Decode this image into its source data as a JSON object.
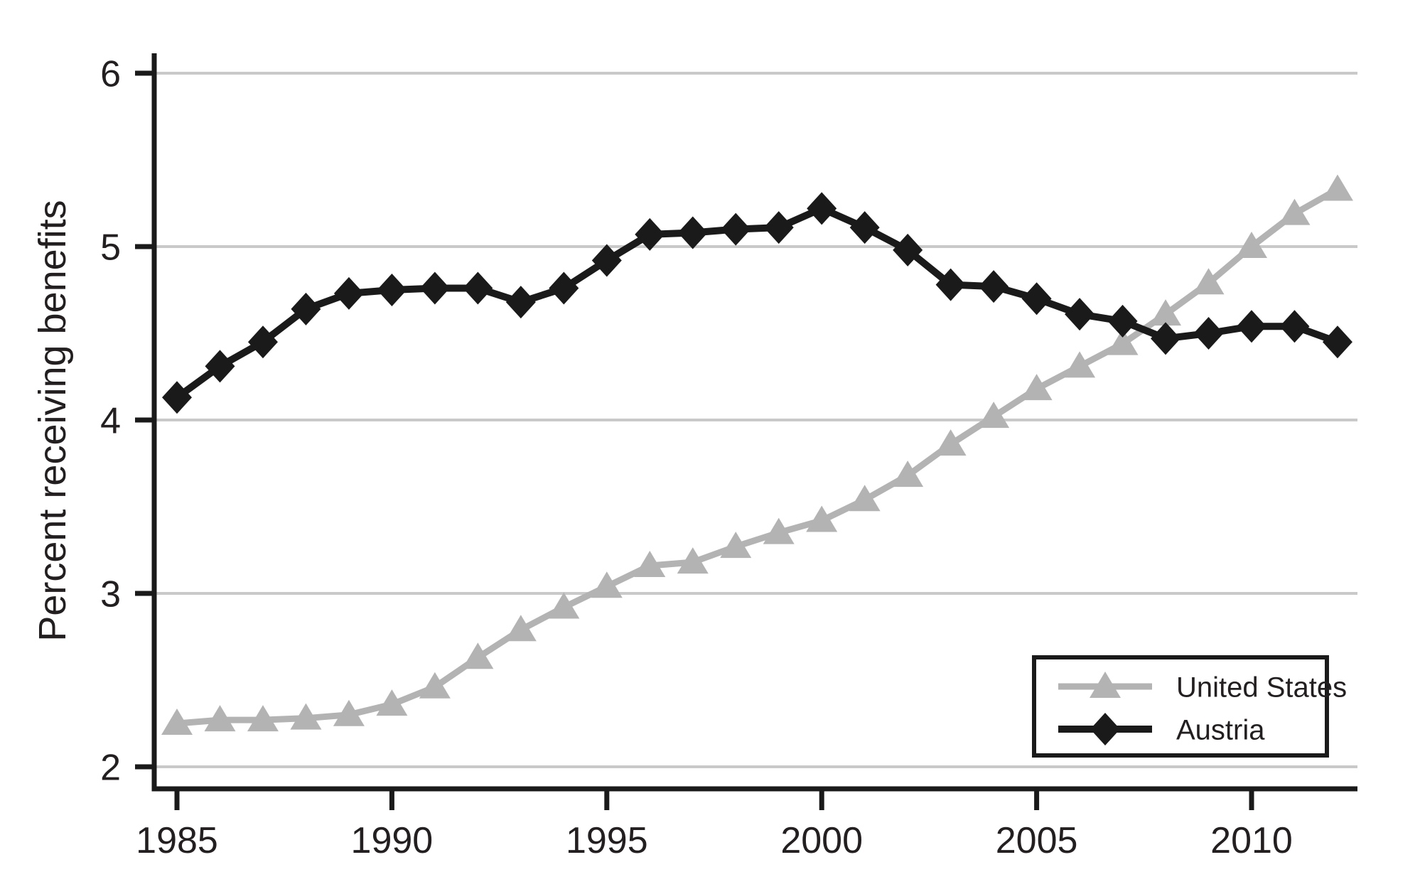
{
  "figure": {
    "background": "#ffffff"
  },
  "chart_data": {
    "type": "line",
    "title": "",
    "xlabel": "",
    "ylabel": "Percent receiving benefits",
    "xlim": [
      1984.5,
      2012.5
    ],
    "ylim": [
      2,
      6
    ],
    "grid": "horizontal",
    "legend_position": "lower right",
    "x_ticks": [
      1985,
      1990,
      1995,
      2000,
      2005,
      2010
    ],
    "y_ticks": [
      2,
      3,
      4,
      5,
      6
    ],
    "x": [
      1985,
      1986,
      1987,
      1988,
      1989,
      1990,
      1991,
      1992,
      1993,
      1994,
      1995,
      1996,
      1997,
      1998,
      1999,
      2000,
      2001,
      2002,
      2003,
      2004,
      2005,
      2006,
      2007,
      2008,
      2009,
      2010,
      2011,
      2012
    ],
    "series": [
      {
        "name": "United States",
        "marker": "triangle",
        "color": "#b3b3b3",
        "line_width": 9,
        "values": [
          2.25,
          2.27,
          2.27,
          2.28,
          2.3,
          2.36,
          2.46,
          2.63,
          2.79,
          2.92,
          3.04,
          3.16,
          3.18,
          3.27,
          3.35,
          3.42,
          3.54,
          3.68,
          3.86,
          4.02,
          4.18,
          4.31,
          4.44,
          4.61,
          4.79,
          5.0,
          5.19,
          5.33
        ]
      },
      {
        "name": "Austria",
        "marker": "diamond",
        "color": "#1a1a1a",
        "line_width": 10,
        "values": [
          4.13,
          4.31,
          4.45,
          4.64,
          4.73,
          4.75,
          4.76,
          4.76,
          4.68,
          4.76,
          4.92,
          5.07,
          5.08,
          5.1,
          5.11,
          5.22,
          5.11,
          4.98,
          4.78,
          4.77,
          4.7,
          4.61,
          4.57,
          4.47,
          4.5,
          4.54,
          4.54,
          4.45
        ]
      }
    ]
  },
  "legend": {
    "items": [
      "United States",
      "Austria"
    ]
  },
  "colors": {
    "gridline": "#c9c9c9",
    "axis": "#1a1a1a",
    "text": "#231f20",
    "united_states": "#b3b3b3",
    "austria": "#1a1a1a"
  }
}
